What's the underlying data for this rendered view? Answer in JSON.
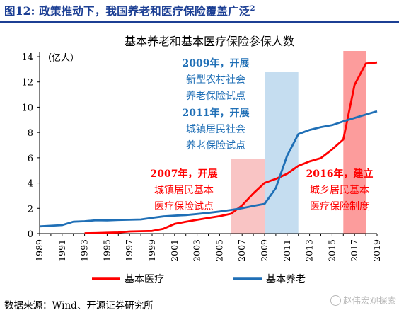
{
  "figure": {
    "number_label": "图12:",
    "title": "政策推动下，我国养老和医疗保险覆盖广泛",
    "footnote_mark": "2",
    "source": "数据来源：Wind、开源证券研究所",
    "watermark": "赵伟宏观探索",
    "watermark_icon": "wechat-logo-icon"
  },
  "chart_data": {
    "type": "line",
    "title": "基本养老和基本医疗保险参保人数",
    "unit_label": "（亿人）",
    "xlabel": "",
    "ylabel": "",
    "ylim": [
      0,
      14
    ],
    "yticks": [
      0,
      2,
      4,
      6,
      8,
      10,
      12,
      14
    ],
    "xlim": [
      1989,
      2019
    ],
    "xtick_labels": [
      "1989",
      "1991",
      "1993",
      "1995",
      "1997",
      "1999",
      "2001",
      "2003",
      "2005",
      "2007",
      "2009",
      "2011",
      "2013",
      "2015",
      "2017",
      "2019"
    ],
    "grid": false,
    "legend_position": "bottom",
    "series": [
      {
        "name": "基本医疗",
        "color": "#ff0000",
        "x": [
          1993,
          1994,
          1995,
          1996,
          1997,
          1998,
          1999,
          2000,
          2001,
          2002,
          2003,
          2004,
          2005,
          2006,
          2007,
          2008,
          2009,
          2010,
          2011,
          2012,
          2013,
          2014,
          2015,
          2016,
          2017,
          2018,
          2019
        ],
        "values": [
          0.03,
          0.04,
          0.07,
          0.09,
          0.17,
          0.19,
          0.21,
          0.38,
          0.77,
          0.94,
          1.09,
          1.24,
          1.38,
          1.57,
          2.23,
          3.18,
          4.01,
          4.33,
          4.73,
          5.36,
          5.71,
          5.97,
          6.66,
          7.45,
          11.77,
          13.45,
          13.54
        ]
      },
      {
        "name": "基本养老",
        "color": "#1f6fb6",
        "x": [
          1989,
          1990,
          1991,
          1992,
          1993,
          1994,
          1995,
          1996,
          1997,
          1998,
          1999,
          2000,
          2001,
          2002,
          2003,
          2004,
          2005,
          2006,
          2007,
          2008,
          2009,
          2010,
          2011,
          2012,
          2013,
          2014,
          2015,
          2016,
          2017,
          2018,
          2019
        ],
        "values": [
          0.57,
          0.62,
          0.67,
          0.94,
          0.98,
          1.06,
          1.05,
          1.08,
          1.1,
          1.12,
          1.25,
          1.36,
          1.42,
          1.47,
          1.55,
          1.64,
          1.75,
          1.87,
          2.01,
          2.19,
          2.35,
          3.6,
          6.16,
          7.87,
          8.2,
          8.42,
          8.58,
          8.88,
          9.15,
          9.42,
          9.68
        ]
      }
    ],
    "highlight_bands": [
      {
        "from": 2006,
        "to": 2009,
        "color": "#f9c4c4"
      },
      {
        "from": 2009,
        "to": 2012,
        "color": "#c5ddf0"
      },
      {
        "from": 2016,
        "to": 2018,
        "color": "#fc9c9c"
      }
    ],
    "annotations": [
      {
        "lines": [
          "2009年，开展",
          "新型农村社会",
          "养老保险试点"
        ],
        "color": "#1f6fb6"
      },
      {
        "lines": [
          "2011年，开展",
          "城镇居民社会",
          "养老保险试点"
        ],
        "color": "#1f6fb6"
      },
      {
        "lines": [
          "2007年，开展",
          "城镇居民基本",
          "医疗保险试点"
        ],
        "color": "#ff0000"
      },
      {
        "lines": [
          "2016年，建立",
          "城乡居民基本",
          "医疗保险制度"
        ],
        "color": "#ff0000"
      }
    ]
  }
}
